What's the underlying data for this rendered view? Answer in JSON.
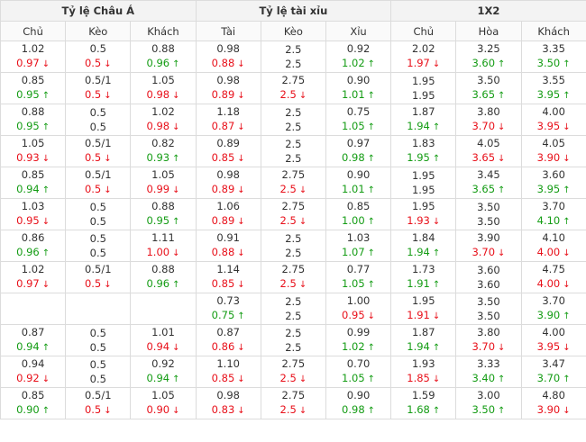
{
  "headers": {
    "group1": "Tỷ lệ Châu Á",
    "group2": "Tỷ lệ tài xỉu",
    "group3": "1X2",
    "asia": [
      "Chủ",
      "Kèo",
      "Khách"
    ],
    "ou": [
      "Tài",
      "Kèo",
      "Xỉu"
    ],
    "x12": [
      "Chủ",
      "Hòa",
      "Khách"
    ]
  },
  "rows": [
    [
      [
        "1.02",
        "0.97",
        "red"
      ],
      [
        "0.5",
        "0.5",
        "red"
      ],
      [
        "0.88",
        "0.96",
        "green"
      ],
      [
        "0.98",
        "0.88",
        "red"
      ],
      [
        "2.5",
        "2.5",
        ""
      ],
      [
        "0.92",
        "1.02",
        "green"
      ],
      [
        "2.02",
        "1.97",
        "red"
      ],
      [
        "3.25",
        "3.60",
        "green"
      ],
      [
        "3.35",
        "3.50",
        "green"
      ]
    ],
    [
      [
        "0.85",
        "0.95",
        "green"
      ],
      [
        "0.5/1",
        "0.5",
        "red"
      ],
      [
        "1.05",
        "0.98",
        "red"
      ],
      [
        "0.98",
        "0.89",
        "red"
      ],
      [
        "2.75",
        "2.5",
        "red"
      ],
      [
        "0.90",
        "1.01",
        "green"
      ],
      [
        "1.95",
        "1.95",
        ""
      ],
      [
        "3.50",
        "3.65",
        "green"
      ],
      [
        "3.55",
        "3.95",
        "green"
      ]
    ],
    [
      [
        "0.88",
        "0.95",
        "green"
      ],
      [
        "0.5",
        "0.5",
        ""
      ],
      [
        "1.02",
        "0.98",
        "red"
      ],
      [
        "1.18",
        "0.87",
        "red"
      ],
      [
        "2.5",
        "2.5",
        ""
      ],
      [
        "0.75",
        "1.05",
        "green"
      ],
      [
        "1.87",
        "1.94",
        "green"
      ],
      [
        "3.80",
        "3.70",
        "red"
      ],
      [
        "4.00",
        "3.95",
        "red"
      ]
    ],
    [
      [
        "1.05",
        "0.93",
        "red"
      ],
      [
        "0.5/1",
        "0.5",
        "red"
      ],
      [
        "0.82",
        "0.93",
        "green"
      ],
      [
        "0.89",
        "0.85",
        "red"
      ],
      [
        "2.5",
        "2.5",
        ""
      ],
      [
        "0.97",
        "0.98",
        "green"
      ],
      [
        "1.83",
        "1.95",
        "green"
      ],
      [
        "4.05",
        "3.65",
        "red"
      ],
      [
        "4.05",
        "3.90",
        "red"
      ]
    ],
    [
      [
        "0.85",
        "0.94",
        "green"
      ],
      [
        "0.5/1",
        "0.5",
        "red"
      ],
      [
        "1.05",
        "0.99",
        "red"
      ],
      [
        "0.98",
        "0.89",
        "red"
      ],
      [
        "2.75",
        "2.5",
        "red"
      ],
      [
        "0.90",
        "1.01",
        "green"
      ],
      [
        "1.95",
        "1.95",
        ""
      ],
      [
        "3.45",
        "3.65",
        "green"
      ],
      [
        "3.60",
        "3.95",
        "green"
      ]
    ],
    [
      [
        "1.03",
        "0.95",
        "red"
      ],
      [
        "0.5",
        "0.5",
        ""
      ],
      [
        "0.88",
        "0.95",
        "green"
      ],
      [
        "1.06",
        "0.89",
        "red"
      ],
      [
        "2.75",
        "2.5",
        "red"
      ],
      [
        "0.85",
        "1.00",
        "green"
      ],
      [
        "1.95",
        "1.93",
        "red"
      ],
      [
        "3.50",
        "3.50",
        ""
      ],
      [
        "3.70",
        "4.10",
        "green"
      ]
    ],
    [
      [
        "0.86",
        "0.96",
        "green"
      ],
      [
        "0.5",
        "0.5",
        ""
      ],
      [
        "1.11",
        "1.00",
        "red"
      ],
      [
        "0.91",
        "0.88",
        "red"
      ],
      [
        "2.5",
        "2.5",
        ""
      ],
      [
        "1.03",
        "1.07",
        "green"
      ],
      [
        "1.84",
        "1.94",
        "green"
      ],
      [
        "3.90",
        "3.70",
        "red"
      ],
      [
        "4.10",
        "4.00",
        "red"
      ]
    ],
    [
      [
        "1.02",
        "0.97",
        "red"
      ],
      [
        "0.5/1",
        "0.5",
        "red"
      ],
      [
        "0.88",
        "0.96",
        "green"
      ],
      [
        "1.14",
        "0.85",
        "red"
      ],
      [
        "2.75",
        "2.5",
        "red"
      ],
      [
        "0.77",
        "1.05",
        "green"
      ],
      [
        "1.73",
        "1.91",
        "green"
      ],
      [
        "3.60",
        "3.60",
        ""
      ],
      [
        "4.75",
        "4.00",
        "red"
      ]
    ],
    [
      [
        "",
        "",
        ""
      ],
      [
        "",
        "",
        ""
      ],
      [
        "",
        "",
        ""
      ],
      [
        "0.73",
        "0.75",
        "green"
      ],
      [
        "2.5",
        "2.5",
        ""
      ],
      [
        "1.00",
        "0.95",
        "red"
      ],
      [
        "1.95",
        "1.91",
        "red"
      ],
      [
        "3.50",
        "3.50",
        ""
      ],
      [
        "3.70",
        "3.90",
        "green"
      ]
    ],
    [
      [
        "0.87",
        "0.94",
        "green"
      ],
      [
        "0.5",
        "0.5",
        ""
      ],
      [
        "1.01",
        "0.94",
        "red"
      ],
      [
        "0.87",
        "0.86",
        "red"
      ],
      [
        "2.5",
        "2.5",
        ""
      ],
      [
        "0.99",
        "1.02",
        "green"
      ],
      [
        "1.87",
        "1.94",
        "green"
      ],
      [
        "3.80",
        "3.70",
        "red"
      ],
      [
        "4.00",
        "3.95",
        "red"
      ]
    ],
    [
      [
        "0.94",
        "0.92",
        "red"
      ],
      [
        "0.5",
        "0.5",
        ""
      ],
      [
        "0.92",
        "0.94",
        "green"
      ],
      [
        "1.10",
        "0.85",
        "red"
      ],
      [
        "2.75",
        "2.5",
        "red"
      ],
      [
        "0.70",
        "1.05",
        "green"
      ],
      [
        "1.93",
        "1.85",
        "red"
      ],
      [
        "3.33",
        "3.40",
        "green"
      ],
      [
        "3.47",
        "3.70",
        "green"
      ]
    ],
    [
      [
        "0.85",
        "0.90",
        "green"
      ],
      [
        "0.5/1",
        "0.5",
        "red"
      ],
      [
        "1.05",
        "0.90",
        "red"
      ],
      [
        "0.98",
        "0.83",
        "red"
      ],
      [
        "2.75",
        "2.5",
        "red"
      ],
      [
        "0.90",
        "0.98",
        "green"
      ],
      [
        "1.59",
        "1.68",
        "green"
      ],
      [
        "3.00",
        "3.50",
        "green"
      ],
      [
        "4.80",
        "3.90",
        "red"
      ]
    ]
  ]
}
